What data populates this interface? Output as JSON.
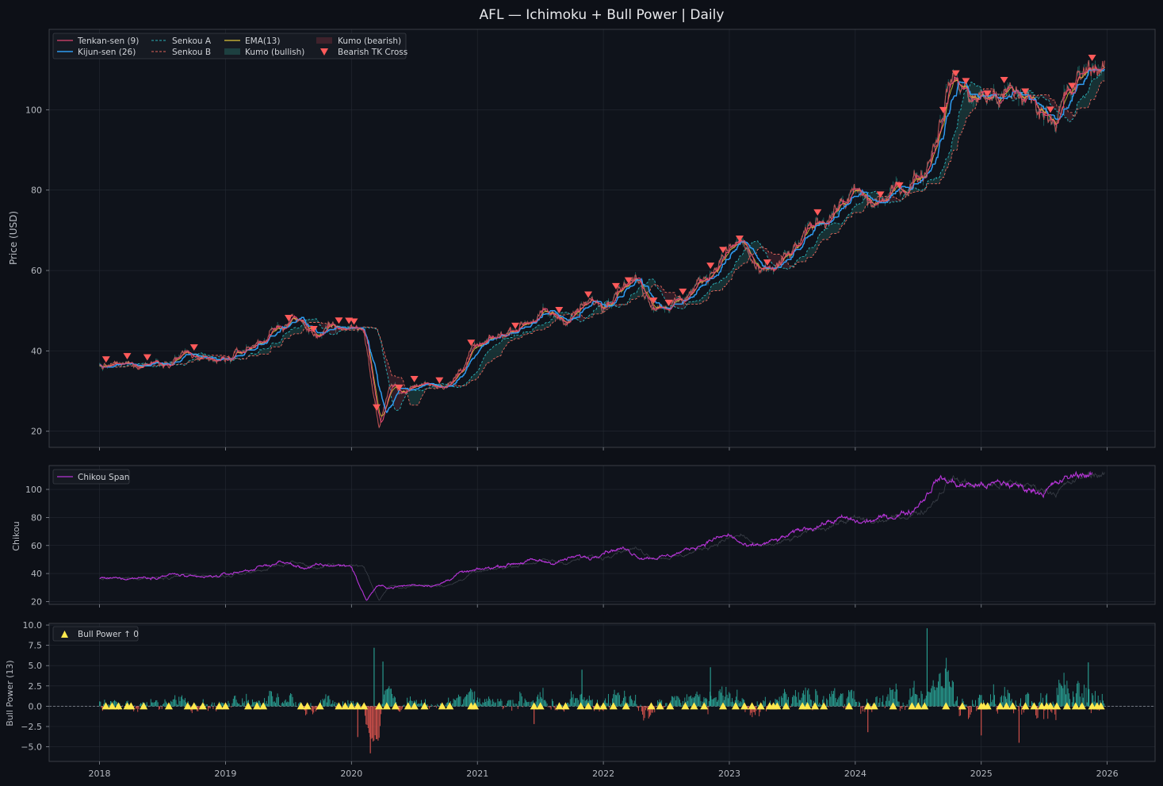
{
  "title": "AFL — Ichimoku + Bull Power | Daily",
  "colors": {
    "background": "#0d1017",
    "tenkan": "#e0456f",
    "kijun": "#2f9bf0",
    "senkou_a": "#2ab0b8",
    "senkou_b": "#e0645a",
    "ema": "#e0c73a",
    "kumo_bullish": "#1f4a48",
    "kumo_bearish": "#4a2430",
    "bearish_marker": "#ff5a5a",
    "chikou": "#b534d6",
    "bull_pos": "#2aa597",
    "bull_neg": "#e0564f",
    "bull_marker": "#ffe94d"
  },
  "chart_data": [
    {
      "type": "line",
      "panel": "price",
      "ylabel": "Price (USD)",
      "ylim": [
        16,
        120
      ],
      "yticks": [
        20,
        40,
        60,
        80,
        100
      ],
      "xlim": [
        2017.6,
        2026.38
      ],
      "xticks": [
        "2018",
        "2019",
        "2020",
        "2021",
        "2022",
        "2023",
        "2024",
        "2025",
        "2026"
      ],
      "grid": true,
      "legend_position": "top-left",
      "legend": [
        "Tenkan-sen (9)",
        "Kijun-sen (26)",
        "Senkou A",
        "Senkou B",
        "EMA(13)",
        "Kumo (bullish)",
        "Kumo (bearish)",
        "Bearish TK Cross"
      ],
      "close_keypoints": [
        [
          2018.0,
          36
        ],
        [
          2018.25,
          36.5
        ],
        [
          2018.5,
          37.5
        ],
        [
          2018.7,
          39.5
        ],
        [
          2018.85,
          36.5
        ],
        [
          2019.0,
          37.5
        ],
        [
          2019.2,
          41
        ],
        [
          2019.4,
          45
        ],
        [
          2019.55,
          48.5
        ],
        [
          2019.7,
          44
        ],
        [
          2019.85,
          45.5
        ],
        [
          2020.0,
          46
        ],
        [
          2020.1,
          45.5
        ],
        [
          2020.18,
          28
        ],
        [
          2020.22,
          21
        ],
        [
          2020.3,
          31
        ],
        [
          2020.4,
          30
        ],
        [
          2020.6,
          32
        ],
        [
          2020.8,
          32
        ],
        [
          2020.95,
          40
        ],
        [
          2021.1,
          42
        ],
        [
          2021.3,
          46
        ],
        [
          2021.5,
          49
        ],
        [
          2021.7,
          48
        ],
        [
          2021.9,
          52
        ],
        [
          2022.0,
          51
        ],
        [
          2022.1,
          57
        ],
        [
          2022.25,
          58
        ],
        [
          2022.4,
          52
        ],
        [
          2022.6,
          52
        ],
        [
          2022.8,
          58
        ],
        [
          2022.95,
          64
        ],
        [
          2023.1,
          67
        ],
        [
          2023.25,
          58
        ],
        [
          2023.5,
          64
        ],
        [
          2023.7,
          72
        ],
        [
          2023.9,
          77
        ],
        [
          2024.0,
          79
        ],
        [
          2024.15,
          76
        ],
        [
          2024.35,
          80
        ],
        [
          2024.55,
          85
        ],
        [
          2024.65,
          95
        ],
        [
          2024.75,
          108
        ],
        [
          2024.95,
          103
        ],
        [
          2025.1,
          103
        ],
        [
          2025.3,
          104
        ],
        [
          2025.5,
          100
        ],
        [
          2025.6,
          99
        ],
        [
          2025.75,
          106
        ],
        [
          2025.9,
          112
        ],
        [
          2025.98,
          110
        ]
      ],
      "bearish_tk_cross": [
        2018.05,
        2018.22,
        2018.38,
        2018.75,
        2019.5,
        2019.7,
        2019.9,
        2019.98,
        2020.02,
        2020.2,
        2020.38,
        2020.5,
        2020.7,
        2020.95,
        2021.3,
        2021.65,
        2021.88,
        2022.1,
        2022.2,
        2022.4,
        2022.52,
        2022.63,
        2022.85,
        2022.95,
        2023.08,
        2023.3,
        2023.7,
        2024.2,
        2024.35,
        2024.7,
        2024.8,
        2024.88,
        2025.05,
        2025.18,
        2025.35,
        2025.55,
        2025.72,
        2025.88
      ]
    },
    {
      "type": "line",
      "panel": "chikou",
      "ylabel": "Chikou",
      "ylim": [
        18,
        117
      ],
      "yticks": [
        20,
        40,
        60,
        80,
        100
      ],
      "legend_position": "top-left",
      "legend": [
        "Chikou Span"
      ],
      "series": [
        {
          "name": "Chikou Span",
          "shift_years": -0.1
        }
      ]
    },
    {
      "type": "bar",
      "panel": "bull_power",
      "ylabel": "Bull Power (13)",
      "ylim": [
        -6.8,
        10.2
      ],
      "yticks": [
        "10.0",
        "7.5",
        "5.0",
        "2.5",
        "0.0",
        "−2.5",
        "−5.0"
      ],
      "zero_line": true,
      "legend_position": "top-left",
      "legend": [
        "Bull Power ↑ 0"
      ],
      "spikes": [
        [
          2020.18,
          7.2
        ],
        [
          2020.25,
          5.5
        ],
        [
          2021.83,
          4.5
        ],
        [
          2022.85,
          4.8
        ],
        [
          2024.57,
          9.6
        ],
        [
          2025.85,
          5.4
        ],
        [
          2020.15,
          -5.8
        ],
        [
          2020.05,
          -3.8
        ],
        [
          2024.1,
          -3.2
        ],
        [
          2025.0,
          -3.6
        ],
        [
          2025.3,
          -4.5
        ],
        [
          2021.45,
          -2.2
        ]
      ],
      "bull_cross_markers": [
        2018.05,
        2018.1,
        2018.15,
        2018.22,
        2018.25,
        2018.35,
        2018.55,
        2018.7,
        2018.75,
        2018.82,
        2018.95,
        2019.0,
        2019.18,
        2019.25,
        2019.3,
        2019.6,
        2019.65,
        2019.75,
        2019.9,
        2019.95,
        2020.0,
        2020.05,
        2020.1,
        2020.22,
        2020.28,
        2020.35,
        2020.45,
        2020.5,
        2020.58,
        2020.72,
        2020.78,
        2020.95,
        2020.98,
        2021.45,
        2021.5,
        2021.65,
        2021.7,
        2021.82,
        2021.88,
        2021.95,
        2022.0,
        2022.08,
        2022.18,
        2022.38,
        2022.45,
        2022.53,
        2022.65,
        2022.72,
        2022.8,
        2022.95,
        2023.05,
        2023.12,
        2023.18,
        2023.25,
        2023.32,
        2023.35,
        2023.38,
        2023.45,
        2023.58,
        2023.62,
        2023.68,
        2023.75,
        2023.95,
        2024.1,
        2024.15,
        2024.3,
        2024.45,
        2024.5,
        2024.55,
        2024.72,
        2024.85,
        2025.0,
        2025.02,
        2025.05,
        2025.15,
        2025.2,
        2025.25,
        2025.35,
        2025.42,
        2025.48,
        2025.52,
        2025.55,
        2025.6,
        2025.68,
        2025.75,
        2025.8,
        2025.88,
        2025.92,
        2025.95
      ]
    }
  ]
}
